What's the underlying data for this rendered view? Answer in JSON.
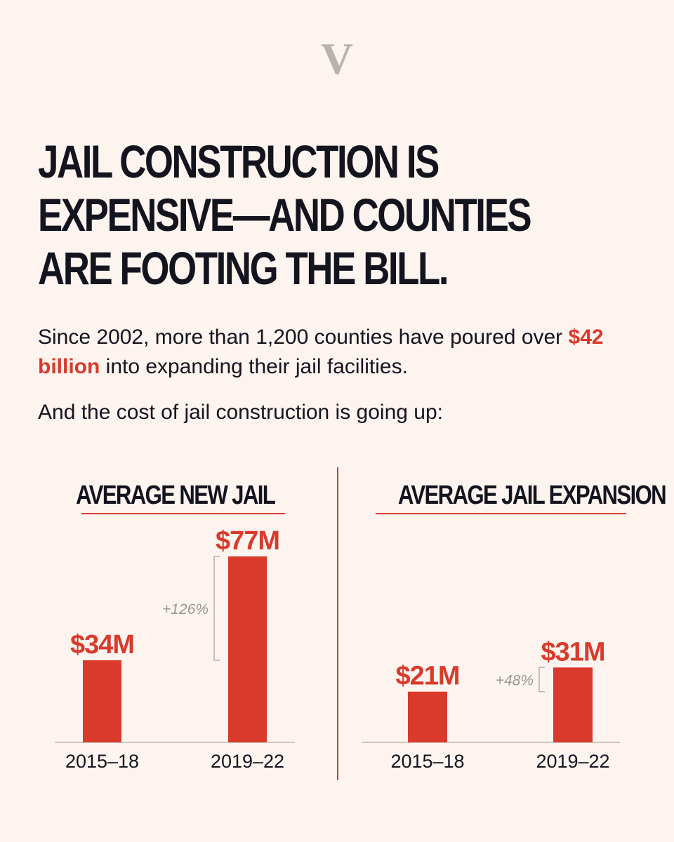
{
  "logo": "V",
  "headline": {
    "lines": [
      "JAIL CONSTRUCTION IS",
      "EXPENSIVE—AND COUNTIES",
      "ARE FOOTING THE BILL."
    ]
  },
  "intro": {
    "before": "Since 2002, more than 1,200 counties have poured over ",
    "highlight": "$42 billion",
    "after": " into expanding their jail facilities."
  },
  "subintro": "And the cost of jail construction is going up:",
  "colors": {
    "background": "#fdf4ef",
    "accent": "#d93a2b",
    "text": "#14141f",
    "muted": "#9a9693",
    "logo": "#b7b2ad"
  },
  "chart_data": [
    {
      "type": "bar",
      "title": "AVERAGE NEW JAIL",
      "categories": [
        "2015–18",
        "2019–22"
      ],
      "values": [
        34,
        77
      ],
      "value_labels": [
        "$34M",
        "$77M"
      ],
      "unit": "$M",
      "change_label": "+126%",
      "ylim": [
        0,
        77
      ]
    },
    {
      "type": "bar",
      "title": "AVERAGE JAIL EXPANSION",
      "categories": [
        "2015–18",
        "2019–22"
      ],
      "values": [
        21,
        31
      ],
      "value_labels": [
        "$21M",
        "$31M"
      ],
      "unit": "$M",
      "change_label": "+48%",
      "ylim": [
        0,
        77
      ]
    }
  ]
}
